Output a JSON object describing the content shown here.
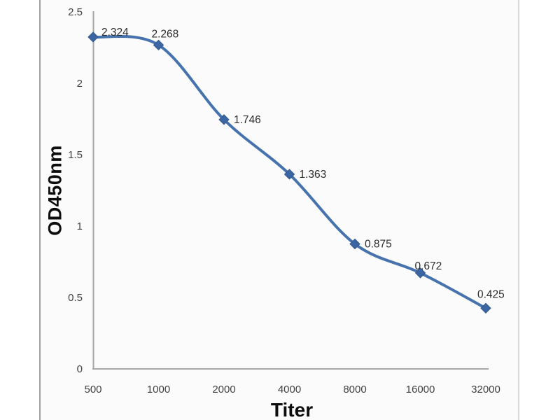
{
  "chart_data": {
    "type": "line",
    "title": "",
    "xlabel": "Titer",
    "ylabel": "OD450nm",
    "categories": [
      "500",
      "1000",
      "2000",
      "4000",
      "8000",
      "16000",
      "32000"
    ],
    "series": [
      {
        "name": "OD450nm",
        "values": [
          2.324,
          2.268,
          1.746,
          1.363,
          0.875,
          0.672,
          0.425
        ]
      }
    ],
    "data_labels": [
      "2.324",
      "2.268",
      "1.746",
      "1.363",
      "0.875",
      "0.672",
      "0.425"
    ],
    "y_ticks": [
      "2.5",
      "2",
      "1.5",
      "1",
      "0.5",
      "0"
    ],
    "ylim": [
      0,
      2.5
    ],
    "x_axis_scale": "log2-categories",
    "grid": false,
    "legend": "none",
    "line_style": "smooth",
    "marker": "diamond",
    "colors": {
      "line": "#4673ad",
      "marker_fill": "#3b66a3",
      "marker_stroke": "#33588e",
      "axis": "#a6a6a6",
      "tick_text": "#3f3f3f",
      "data_label_text": "#2b2b2b"
    }
  }
}
